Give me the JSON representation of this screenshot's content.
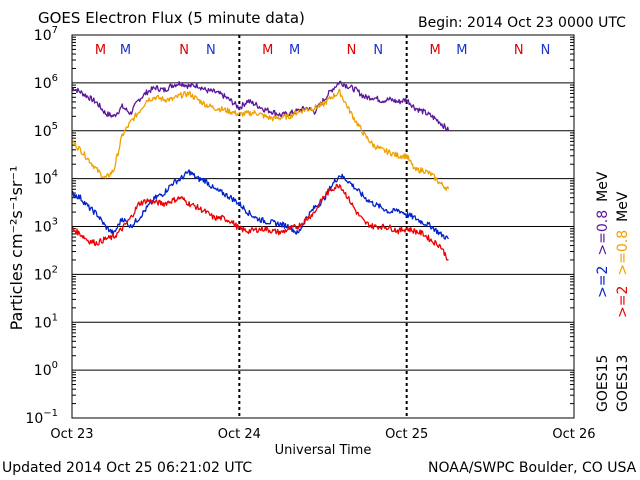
{
  "header": {
    "title": "GOES Electron Flux (5 minute data)",
    "begin": "Begin: 2014 Oct 23 0000 UTC"
  },
  "footer": {
    "updated": "Updated 2014 Oct 25 06:21:02 UTC",
    "credit": "NOAA/SWPC Boulder, CO USA"
  },
  "colors": {
    "goes15_ge2": "#0022cc",
    "goes13_ge2": "#ee0000",
    "goes15_ge08": "#5a189a",
    "goes13_ge08": "#f0a000",
    "marker_M": "#dd0000",
    "marker_N_red": "#dd0000",
    "marker_blue": "#1a33cc"
  },
  "chart_data": {
    "type": "line",
    "title": "GOES Electron Flux (5 minute data)",
    "xlabel": "Universal Time",
    "ylabel": "Particles cm⁻²s⁻¹sr⁻¹",
    "x_unit": "days since 2014 Oct 23 0000 UTC",
    "xlim": [
      0,
      3
    ],
    "ylim": [
      0.1,
      10000000
    ],
    "yscale": "log",
    "x_ticks": [
      {
        "x": 0,
        "label": "Oct 23"
      },
      {
        "x": 1,
        "label": "Oct 24"
      },
      {
        "x": 2,
        "label": "Oct 25"
      },
      {
        "x": 3,
        "label": "Oct 26"
      }
    ],
    "y_ticks": [
      {
        "exp": -1,
        "base": "10",
        "sup": "−1"
      },
      {
        "exp": 0,
        "base": "10",
        "sup": "0"
      },
      {
        "exp": 1,
        "base": "10",
        "sup": "1"
      },
      {
        "exp": 2,
        "base": "10",
        "sup": "2"
      },
      {
        "exp": 3,
        "base": "10",
        "sup": "3"
      },
      {
        "exp": 4,
        "base": "10",
        "sup": "4"
      },
      {
        "exp": 5,
        "base": "10",
        "sup": "5"
      },
      {
        "exp": 6,
        "base": "10",
        "sup": "6"
      },
      {
        "exp": 7,
        "base": "10",
        "sup": "7"
      }
    ],
    "threshold": 1000,
    "markers": [
      {
        "x": 0.17,
        "label": "M",
        "color": "#dd0000"
      },
      {
        "x": 0.32,
        "label": "M",
        "color": "#1a33cc"
      },
      {
        "x": 0.67,
        "label": "N",
        "color": "#dd0000"
      },
      {
        "x": 0.83,
        "label": "N",
        "color": "#1a33cc"
      },
      {
        "x": 1.17,
        "label": "M",
        "color": "#dd0000"
      },
      {
        "x": 1.33,
        "label": "M",
        "color": "#1a33cc"
      },
      {
        "x": 1.67,
        "label": "N",
        "color": "#dd0000"
      },
      {
        "x": 1.83,
        "label": "N",
        "color": "#1a33cc"
      },
      {
        "x": 2.17,
        "label": "M",
        "color": "#dd0000"
      },
      {
        "x": 2.33,
        "label": "M",
        "color": "#1a33cc"
      },
      {
        "x": 2.67,
        "label": "N",
        "color": "#dd0000"
      },
      {
        "x": 2.83,
        "label": "N",
        "color": "#1a33cc"
      }
    ],
    "legend": {
      "placement": "right",
      "items": [
        {
          "sat": "GOES15",
          "energy": ">=2   >=0.8  MeV"
        },
        {
          "sat": "GOES13",
          "energy": ">=2   >=0.8  MeV"
        }
      ]
    },
    "series": [
      {
        "color": "#5a189a",
        "x": [
          0,
          0.05,
          0.1,
          0.15,
          0.2,
          0.25,
          0.3,
          0.35,
          0.4,
          0.45,
          0.5,
          0.55,
          0.6,
          0.65,
          0.7,
          0.75,
          0.8,
          0.85,
          0.9,
          0.95,
          1.0,
          1.05,
          1.1,
          1.15,
          1.2,
          1.25,
          1.3,
          1.35,
          1.4,
          1.45,
          1.5,
          1.55,
          1.6,
          1.65,
          1.7,
          1.75,
          1.8,
          1.85,
          1.9,
          1.95,
          2.0,
          2.05,
          2.1,
          2.15,
          2.2,
          2.25
        ],
        "y": [
          800000,
          650000,
          500000,
          380000,
          230000,
          200000,
          320000,
          230000,
          450000,
          650000,
          800000,
          700000,
          900000,
          1000000,
          850000,
          900000,
          700000,
          650000,
          550000,
          420000,
          300000,
          420000,
          350000,
          280000,
          250000,
          210000,
          230000,
          260000,
          300000,
          250000,
          420000,
          700000,
          1050000,
          850000,
          700000,
          500000,
          500000,
          430000,
          450000,
          400000,
          450000,
          300000,
          250000,
          200000,
          150000,
          100000
        ]
      },
      {
        "color": "#f0a000",
        "x": [
          0,
          0.05,
          0.1,
          0.15,
          0.2,
          0.25,
          0.3,
          0.35,
          0.4,
          0.45,
          0.5,
          0.55,
          0.6,
          0.65,
          0.7,
          0.75,
          0.8,
          0.85,
          0.9,
          0.95,
          1.0,
          1.05,
          1.1,
          1.15,
          1.2,
          1.25,
          1.3,
          1.35,
          1.4,
          1.45,
          1.5,
          1.55,
          1.6,
          1.65,
          1.7,
          1.75,
          1.8,
          1.85,
          1.9,
          1.95,
          2.0,
          2.05,
          2.1,
          2.15,
          2.2,
          2.25
        ],
        "y": [
          60000,
          40000,
          25000,
          15000,
          10000,
          15000,
          80000,
          150000,
          250000,
          450000,
          500000,
          450000,
          450000,
          550000,
          600000,
          450000,
          350000,
          300000,
          280000,
          250000,
          220000,
          230000,
          240000,
          200000,
          180000,
          190000,
          200000,
          250000,
          280000,
          300000,
          350000,
          500000,
          650000,
          300000,
          150000,
          80000,
          50000,
          40000,
          35000,
          30000,
          30000,
          15000,
          15000,
          12000,
          8000,
          6000
        ]
      },
      {
        "color": "#0022cc",
        "x": [
          0,
          0.05,
          0.1,
          0.15,
          0.2,
          0.25,
          0.3,
          0.35,
          0.4,
          0.45,
          0.5,
          0.55,
          0.6,
          0.65,
          0.7,
          0.75,
          0.8,
          0.85,
          0.9,
          0.95,
          1.0,
          1.05,
          1.1,
          1.15,
          1.2,
          1.25,
          1.3,
          1.35,
          1.4,
          1.45,
          1.5,
          1.55,
          1.6,
          1.65,
          1.7,
          1.75,
          1.8,
          1.85,
          1.9,
          1.95,
          2.0,
          2.05,
          2.1,
          2.15,
          2.2,
          2.25
        ],
        "y": [
          5000,
          4000,
          2500,
          1800,
          1000,
          700,
          1500,
          1000,
          1500,
          2500,
          4000,
          5000,
          8000,
          10000,
          14000,
          10000,
          9000,
          6000,
          5000,
          4000,
          3000,
          2000,
          1500,
          1300,
          1200,
          1100,
          1000,
          700,
          1500,
          2500,
          3500,
          7000,
          12000,
          9000,
          6000,
          4000,
          3000,
          2500,
          2000,
          2200,
          1800,
          1500,
          1200,
          1000,
          700,
          550
        ]
      },
      {
        "color": "#ee0000",
        "x": [
          0,
          0.05,
          0.1,
          0.15,
          0.2,
          0.25,
          0.3,
          0.35,
          0.4,
          0.45,
          0.5,
          0.55,
          0.6,
          0.65,
          0.7,
          0.75,
          0.8,
          0.85,
          0.9,
          0.95,
          1.0,
          1.05,
          1.1,
          1.15,
          1.2,
          1.25,
          1.3,
          1.35,
          1.4,
          1.45,
          1.5,
          1.55,
          1.6,
          1.65,
          1.7,
          1.75,
          1.8,
          1.85,
          1.9,
          1.95,
          2.0,
          2.05,
          2.1,
          2.15,
          2.2,
          2.25
        ],
        "y": [
          900,
          700,
          500,
          450,
          550,
          600,
          900,
          1500,
          3000,
          3500,
          3200,
          3000,
          3500,
          4000,
          3000,
          2500,
          2000,
          1500,
          1500,
          1300,
          900,
          800,
          850,
          900,
          800,
          750,
          900,
          1000,
          1400,
          2000,
          4000,
          6000,
          7500,
          4000,
          2000,
          1200,
          1000,
          1000,
          950,
          800,
          900,
          800,
          700,
          500,
          400,
          200
        ]
      }
    ]
  }
}
